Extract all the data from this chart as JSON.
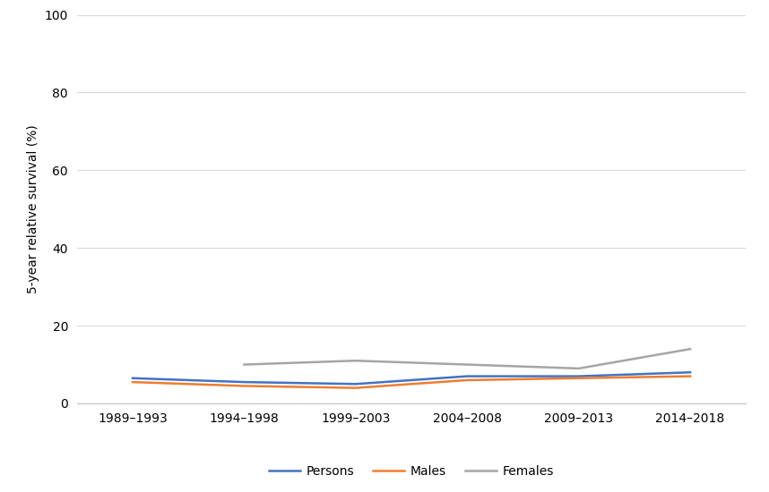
{
  "categories": [
    "1989–1993",
    "1994–1998",
    "1999–2003",
    "2004–2008",
    "2009–2013",
    "2014–2018"
  ],
  "persons": [
    6.5,
    5.5,
    5.0,
    7.0,
    7.0,
    8.0
  ],
  "males": [
    5.5,
    4.5,
    4.0,
    6.0,
    6.5,
    7.0
  ],
  "females": [
    null,
    10.0,
    11.0,
    10.0,
    9.0,
    14.0
  ],
  "persons_color": "#4472C4",
  "males_color": "#ED7D31",
  "females_color": "#A5A5A5",
  "ylabel": "5-year relative survival (%)",
  "ylim": [
    0,
    100
  ],
  "yticks": [
    0,
    20,
    40,
    60,
    80,
    100
  ],
  "legend_labels": [
    "Persons",
    "Males",
    "Females"
  ],
  "bg_color": "#FFFFFF",
  "grid_color": "#D9D9D9",
  "line_width": 1.8,
  "font_size": 10
}
